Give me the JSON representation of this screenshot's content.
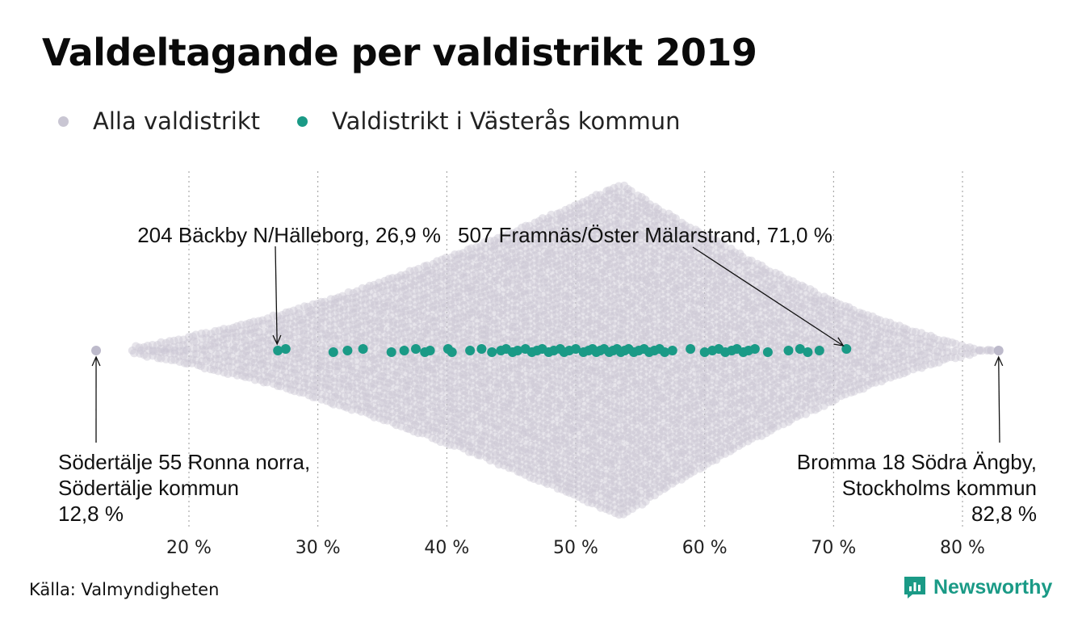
{
  "title": "Valdeltagande per valdistrikt 2019",
  "legend": [
    {
      "label": "Alla valdistrikt",
      "color": "#c9c6d3"
    },
    {
      "label": "Valdistrikt i Västerås kommun",
      "color": "#1a9a86"
    }
  ],
  "source": "Källa: Valmyndigheten",
  "brand": {
    "name": "Newsworthy",
    "icon": "newsworthy-logo-icon"
  },
  "chart_data": {
    "type": "scatter",
    "subtype": "beeswarm",
    "xlim": [
      10,
      86
    ],
    "x_ticks": [
      20,
      30,
      40,
      50,
      60,
      70,
      80
    ],
    "x_tick_labels": [
      "20 %",
      "30 %",
      "40 %",
      "50 %",
      "60 %",
      "70 %",
      "80 %"
    ],
    "grid": "vertical-dotted",
    "all_districts_distribution": {
      "min": 12.8,
      "max": 82.8,
      "peak": 53.5,
      "shape": "triangular"
    },
    "series": [
      {
        "name": "Valdistrikt i Västerås kommun",
        "color": "#1a9a86",
        "values": [
          26.9,
          27.5,
          31.2,
          32.3,
          33.5,
          35.7,
          36.7,
          37.6,
          38.3,
          38.7,
          40.1,
          40.4,
          41.8,
          42.7,
          43.5,
          44.2,
          44.6,
          45.1,
          45.5,
          46.1,
          46.6,
          47.0,
          47.4,
          47.9,
          48.3,
          48.8,
          49.1,
          49.5,
          50.0,
          50.6,
          51.0,
          51.3,
          51.6,
          51.9,
          52.2,
          52.6,
          52.9,
          53.2,
          53.5,
          53.8,
          54.1,
          54.5,
          54.9,
          55.3,
          55.7,
          56.1,
          56.5,
          56.9,
          57.5,
          58.9,
          60.0,
          60.6,
          61.1,
          61.6,
          62.1,
          62.5,
          63.0,
          63.4,
          63.9,
          64.9,
          66.5,
          67.4,
          68.0,
          68.9,
          71.0
        ]
      }
    ],
    "annotations": [
      {
        "lines": [
          "204 Bäckby N/Hälleborg, 26,9 %"
        ],
        "x": 26.9,
        "anchor": "end"
      },
      {
        "lines": [
          "507 Framnäs/Öster Mälarstrand, 71,0 %"
        ],
        "x": 71.0,
        "anchor": "start"
      },
      {
        "lines": [
          "Södertälje 55 Ronna norra,",
          "Södertälje kommun",
          "12,8 %"
        ],
        "x": 12.8,
        "anchor": "start"
      },
      {
        "lines": [
          "Bromma 18 Södra Ängby,",
          "Stockholms kommun",
          "82,8 %"
        ],
        "x": 82.8,
        "anchor": "end"
      }
    ]
  }
}
